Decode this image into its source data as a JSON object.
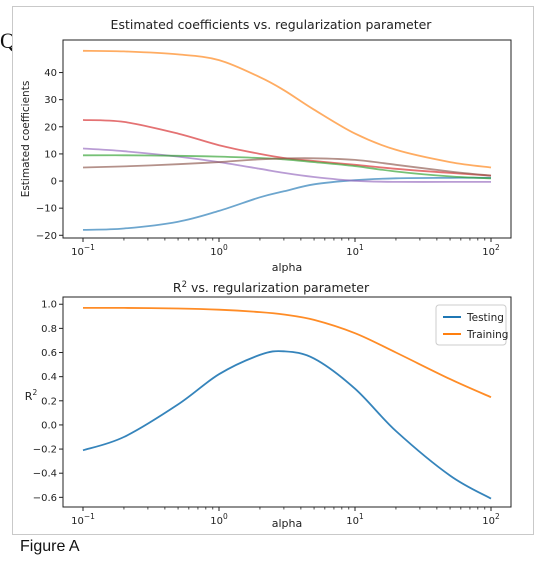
{
  "header_text": "Quiz",
  "caption": "Figure A",
  "colors": {
    "blue": "#1f77b4",
    "orange": "#ff7f0e",
    "green": "#2ca02c",
    "red": "#d62728",
    "purple": "#9467bd",
    "brown": "#8c564b"
  },
  "chart_data": [
    {
      "type": "line",
      "title": "Estimated coefficients vs. regularization parameter",
      "xlabel": "alpha",
      "ylabel": "Estimated coefficients",
      "xscale": "log",
      "xlim": [
        0.1,
        100
      ],
      "ylim": [
        -21,
        52
      ],
      "yticks": [
        -20,
        -10,
        0,
        10,
        20,
        30,
        40
      ],
      "ytick_labels": [
        "−20",
        "−10",
        "0",
        "10",
        "20",
        "30",
        "40"
      ],
      "xticks": [
        0.1,
        1,
        10,
        100
      ],
      "xtick_labels": [
        {
          "base": "10",
          "exp": "−1"
        },
        {
          "base": "10",
          "exp": "0"
        },
        {
          "base": "10",
          "exp": "1"
        },
        {
          "base": "10",
          "exp": "2"
        }
      ],
      "grid": false,
      "legend": "none",
      "x": [
        0.1,
        0.2,
        0.5,
        1,
        2,
        3,
        5,
        10,
        20,
        50,
        100
      ],
      "series": [
        {
          "color": "orange",
          "values": [
            48,
            47.8,
            46.7,
            44.6,
            38.3,
            33.5,
            26.3,
            17.5,
            11.5,
            7,
            5
          ]
        },
        {
          "color": "blue",
          "values": [
            -18,
            -17.5,
            -15,
            -11,
            -6,
            -3.8,
            -1.2,
            0.3,
            1,
            1.2,
            1.2
          ]
        },
        {
          "color": "red",
          "values": [
            22.5,
            21.8,
            17.5,
            13.2,
            10,
            8.5,
            7.4,
            6,
            4.5,
            3,
            2
          ]
        },
        {
          "color": "purple",
          "values": [
            12,
            11,
            9,
            7,
            4.5,
            3,
            1.5,
            0.1,
            -0.3,
            -0.3,
            -0.3
          ]
        },
        {
          "color": "green",
          "values": [
            9.5,
            9.5,
            9.3,
            9,
            8.5,
            8,
            7,
            5.5,
            3.5,
            1.7,
            1
          ]
        },
        {
          "color": "brown",
          "values": [
            5,
            5.4,
            6.2,
            7,
            8,
            8.3,
            8.4,
            7.8,
            6,
            3.5,
            2
          ]
        }
      ]
    },
    {
      "type": "line",
      "title_prefix": "R",
      "title_sup": "2",
      "title_suffix": " vs. regularization parameter",
      "xlabel": "alpha",
      "ylabel_base": "R",
      "ylabel_sup": "2",
      "xscale": "log",
      "xlim": [
        0.1,
        100
      ],
      "ylim": [
        -0.68,
        1.06
      ],
      "yticks": [
        -0.6,
        -0.4,
        -0.2,
        0.0,
        0.2,
        0.4,
        0.6,
        0.8,
        1.0
      ],
      "ytick_labels": [
        "−0.6",
        "−0.4",
        "−0.2",
        "0.0",
        "0.2",
        "0.4",
        "0.6",
        "0.8",
        "1.0"
      ],
      "xticks": [
        0.1,
        1,
        10,
        100
      ],
      "xtick_labels": [
        {
          "base": "10",
          "exp": "−1"
        },
        {
          "base": "10",
          "exp": "0"
        },
        {
          "base": "10",
          "exp": "1"
        },
        {
          "base": "10",
          "exp": "2"
        }
      ],
      "grid": false,
      "legend": "top-right",
      "x": [
        0.1,
        0.2,
        0.5,
        1,
        2,
        3,
        5,
        10,
        20,
        50,
        100
      ],
      "series": [
        {
          "name": "Testing",
          "color": "blue",
          "values": [
            -0.21,
            -0.1,
            0.17,
            0.42,
            0.58,
            0.61,
            0.55,
            0.3,
            -0.05,
            -0.42,
            -0.61
          ]
        },
        {
          "name": "Training",
          "color": "orange",
          "values": [
            0.97,
            0.97,
            0.965,
            0.955,
            0.935,
            0.915,
            0.87,
            0.76,
            0.6,
            0.38,
            0.23
          ]
        }
      ]
    }
  ]
}
